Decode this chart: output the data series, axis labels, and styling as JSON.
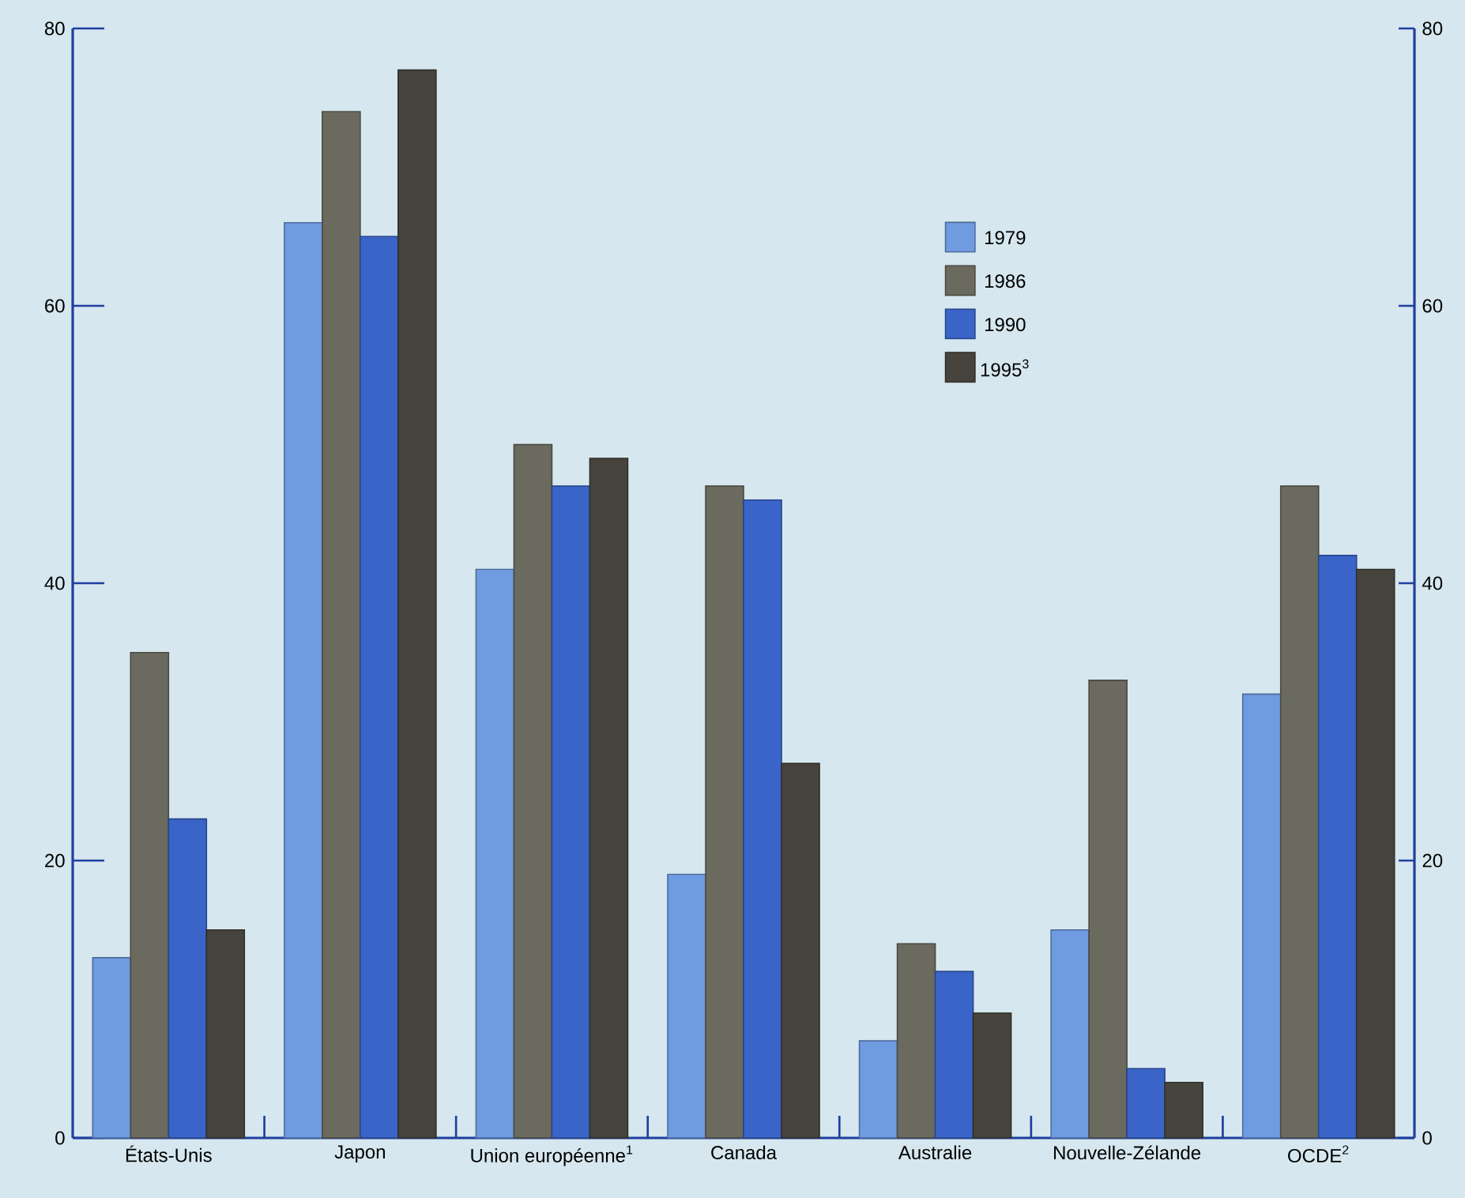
{
  "chart_data": {
    "type": "bar",
    "categories": [
      "États-Unis",
      "Japon",
      "Union européenne$^{1}$",
      "Canada",
      "Australie",
      "Nouvelle-Zélande",
      "OCDE$^{2}$"
    ],
    "series": [
      {
        "name": "1979",
        "color": "#6f9be0",
        "values": [
          13,
          66,
          41,
          19,
          7,
          15,
          32
        ]
      },
      {
        "name": "1986",
        "color": "#6b6a5e",
        "values": [
          35,
          74,
          50,
          47,
          14,
          33,
          47
        ]
      },
      {
        "name": "1990",
        "color": "#3a64c8",
        "values": [
          23,
          65,
          47,
          46,
          12,
          5,
          42
        ]
      },
      {
        "name": "1995$^{3}$",
        "color": "#46443c",
        "values": [
          15,
          77,
          49,
          27,
          9,
          4,
          41
        ]
      }
    ],
    "ylim": [
      0,
      80
    ],
    "yticks": [
      0,
      20,
      40,
      60,
      80
    ],
    "y2lim": [
      0,
      80
    ],
    "y2ticks": [
      0,
      20,
      40,
      60,
      80
    ],
    "legend": "top right"
  }
}
